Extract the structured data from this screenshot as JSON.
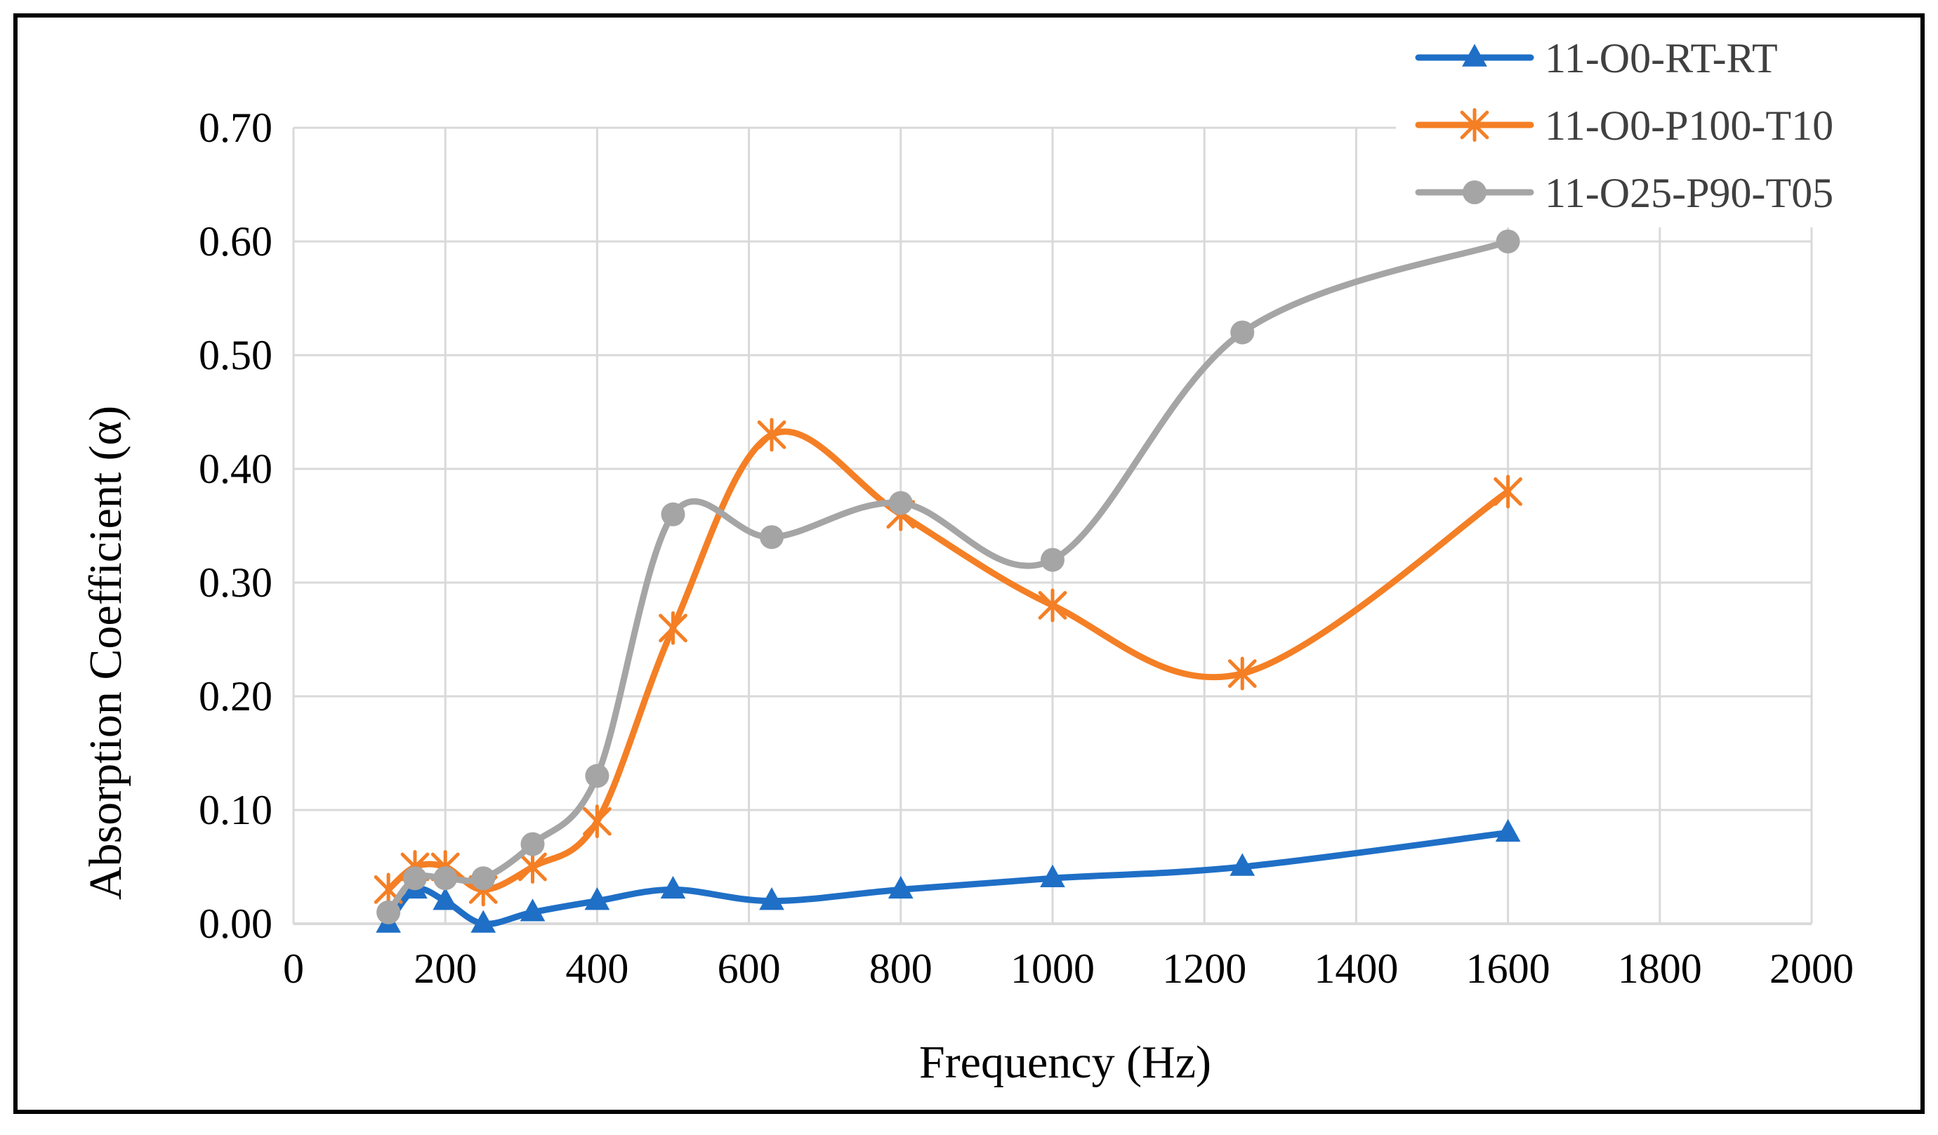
{
  "chart_data": {
    "type": "line",
    "title": "",
    "xlabel": "Frequency (Hz)",
    "ylabel": "Absorption Coefficient (α)",
    "xlim": [
      0,
      2000
    ],
    "ylim": [
      0,
      0.7
    ],
    "x_ticks": [
      0,
      200,
      400,
      600,
      800,
      1000,
      1200,
      1400,
      1600,
      1800,
      2000
    ],
    "y_ticks": [
      0.0,
      0.1,
      0.2,
      0.3,
      0.4,
      0.5,
      0.6,
      0.7
    ],
    "x_tick_labels": [
      "0",
      "200",
      "400",
      "600",
      "800",
      "1000",
      "1200",
      "1400",
      "1600",
      "1800",
      "2000"
    ],
    "y_tick_labels": [
      "0.00",
      "0.10",
      "0.20",
      "0.30",
      "0.40",
      "0.50",
      "0.60",
      "0.70"
    ],
    "grid": true,
    "smooth": true,
    "legend_position": "top-right",
    "x": [
      125,
      160,
      200,
      250,
      315,
      400,
      500,
      630,
      800,
      1000,
      1250,
      1600
    ],
    "series": [
      {
        "name": "11-O0-RT-RT",
        "color": "#1f6fc6",
        "marker": "triangle",
        "values": [
          0.0,
          0.03,
          0.02,
          0.0,
          0.01,
          0.02,
          0.03,
          0.02,
          0.03,
          0.04,
          0.05,
          0.08
        ]
      },
      {
        "name": "11-O0-P100-T10",
        "color": "#f47f25",
        "marker": "asterisk",
        "values": [
          0.03,
          0.05,
          0.05,
          0.03,
          0.05,
          0.09,
          0.26,
          0.43,
          0.36,
          0.28,
          0.22,
          0.38
        ]
      },
      {
        "name": "11-O25-P90-T05",
        "color": "#a5a5a5",
        "marker": "circle",
        "values": [
          0.01,
          0.04,
          0.04,
          0.04,
          0.07,
          0.13,
          0.36,
          0.34,
          0.37,
          0.32,
          0.52,
          0.6
        ]
      }
    ]
  }
}
